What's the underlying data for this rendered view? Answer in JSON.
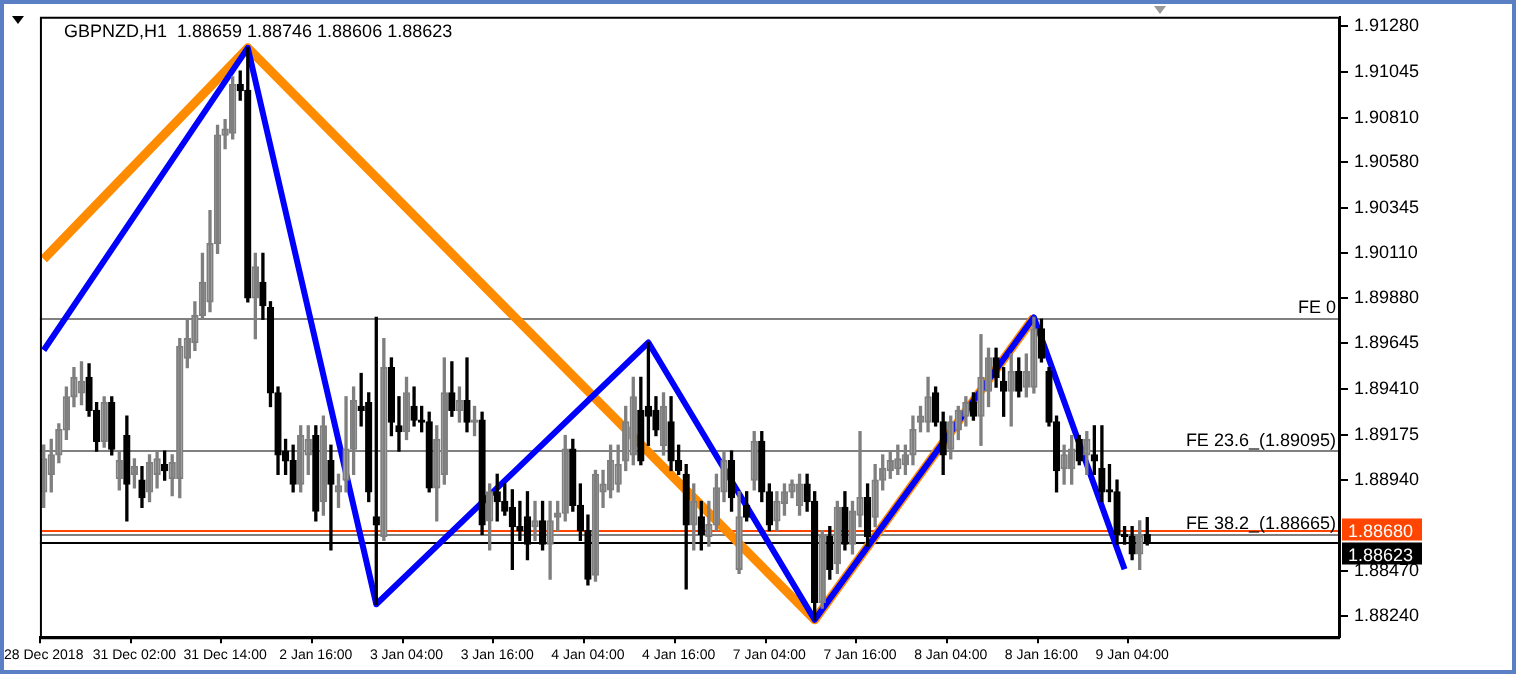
{
  "chart_data": {
    "type": "candlestick",
    "title": "GBPNZD,H1  1.88659 1.88746 1.88606 1.88623",
    "categories": [
      "28 Dec 2018",
      null,
      null,
      null,
      null,
      null,
      null,
      null,
      null,
      null,
      null,
      null,
      "31 Dec 02:00",
      null,
      null,
      null,
      null,
      null,
      null,
      null,
      null,
      null,
      null,
      null,
      "31 Dec 14:00",
      null,
      null,
      null,
      null,
      null,
      null,
      null,
      null,
      null,
      null,
      null,
      "2 Jan 16:00",
      null,
      null,
      null,
      null,
      null,
      null,
      null,
      null,
      null,
      null,
      null,
      "3 Jan 04:00",
      null,
      null,
      null,
      null,
      null,
      null,
      null,
      null,
      null,
      null,
      null,
      "3 Jan 16:00",
      null,
      null,
      null,
      null,
      null,
      null,
      null,
      null,
      null,
      null,
      null,
      "4 Jan 04:00",
      null,
      null,
      null,
      null,
      null,
      null,
      null,
      null,
      null,
      null,
      null,
      "4 Jan 16:00",
      null,
      null,
      null,
      null,
      null,
      null,
      null,
      null,
      null,
      null,
      null,
      "7 Jan 04:00",
      null,
      null,
      null,
      null,
      null,
      null,
      null,
      null,
      null,
      null,
      null,
      "7 Jan 16:00",
      null,
      null,
      null,
      null,
      null,
      null,
      null,
      null,
      null,
      null,
      null,
      "8 Jan 04:00",
      null,
      null,
      null,
      null,
      null,
      null,
      null,
      null,
      null,
      null,
      null,
      "8 Jan 16:00",
      null,
      null,
      null,
      null,
      null,
      null,
      null,
      null,
      null,
      null,
      null,
      "9 Jan 04:00",
      null,
      null,
      null,
      null,
      null,
      null,
      null,
      null,
      null,
      null,
      null,
      null,
      null,
      null,
      null,
      null,
      null,
      null,
      null,
      null,
      null,
      null,
      null,
      null,
      null,
      null,
      null
    ],
    "ohlc": [
      [
        1.8888,
        1.8912,
        1.888,
        1.8905
      ],
      [
        1.8897,
        1.8915,
        1.8888,
        1.8907
      ],
      [
        1.8907,
        1.8923,
        1.8903,
        1.892
      ],
      [
        1.892,
        1.8942,
        1.8915,
        1.8937
      ],
      [
        1.8937,
        1.8952,
        1.8932,
        1.8947
      ],
      [
        1.8939,
        1.8955,
        1.8933,
        1.8945
      ],
      [
        1.8947,
        1.8954,
        1.8927,
        1.893
      ],
      [
        1.893,
        1.8934,
        1.8909,
        1.8914
      ],
      [
        1.8914,
        1.8937,
        1.8911,
        1.8934
      ],
      [
        1.8934,
        1.8937,
        1.8907,
        1.891
      ],
      [
        1.8895,
        1.8909,
        1.8889,
        1.8904
      ],
      [
        1.8917,
        1.8927,
        1.8873,
        1.8892
      ],
      [
        1.8897,
        1.8905,
        1.889,
        1.8901
      ],
      [
        1.8894,
        1.8901,
        1.888,
        1.8885
      ],
      [
        1.8888,
        1.8907,
        1.8883,
        1.8903
      ],
      [
        1.8897,
        1.8909,
        1.889,
        1.8905
      ],
      [
        1.8902,
        1.8909,
        1.8894,
        1.8899
      ],
      [
        1.8895,
        1.8907,
        1.8886,
        1.8903
      ],
      [
        1.8895,
        1.8967,
        1.8885,
        1.8963
      ],
      [
        1.8957,
        1.8977,
        1.8952,
        1.8967
      ],
      [
        1.8965,
        1.8986,
        1.8961,
        1.8979
      ],
      [
        1.8979,
        1.9011,
        1.8977,
        1.8996
      ],
      [
        1.8986,
        1.9033,
        1.8981,
        1.9016
      ],
      [
        1.9016,
        1.9077,
        1.9011,
        1.9072
      ],
      [
        1.9072,
        1.908,
        1.9065,
        1.9075
      ],
      [
        1.9073,
        1.9102,
        1.907,
        1.9098
      ],
      [
        1.9098,
        1.9105,
        1.909,
        1.9095
      ],
      [
        1.9095,
        1.9117,
        1.8986,
        1.8988
      ],
      [
        1.8988,
        1.9011,
        1.8967,
        1.9004
      ],
      [
        1.8996,
        1.9011,
        1.8977,
        1.8984
      ],
      [
        1.8983,
        1.8986,
        1.8932,
        1.8939
      ],
      [
        1.8939,
        1.8942,
        1.8897,
        1.8907
      ],
      [
        1.8909,
        1.8915,
        1.8897,
        1.8904
      ],
      [
        1.8904,
        1.8912,
        1.8888,
        1.8892
      ],
      [
        1.8892,
        1.8922,
        1.8888,
        1.8917
      ],
      [
        1.8907,
        1.8922,
        1.8897,
        1.8915
      ],
      [
        1.8917,
        1.8922,
        1.8873,
        1.8878
      ],
      [
        1.8883,
        1.8927,
        1.8876,
        1.8922
      ],
      [
        1.8904,
        1.8912,
        1.8858,
        1.8892
      ],
      [
        1.8888,
        1.8897,
        1.888,
        1.8891
      ],
      [
        1.8894,
        1.8937,
        1.8888,
        1.891
      ],
      [
        1.891,
        1.8942,
        1.8897,
        1.8935
      ],
      [
        1.8932,
        1.8949,
        1.8922,
        1.893
      ],
      [
        1.8934,
        1.8939,
        1.8883,
        1.8888
      ],
      [
        1.8875,
        1.8978,
        1.883,
        1.8871
      ],
      [
        1.8865,
        1.8967,
        1.8863,
        1.8952
      ],
      [
        1.8952,
        1.8957,
        1.8917,
        1.8924
      ],
      [
        1.8922,
        1.8937,
        1.8909,
        1.8919
      ],
      [
        1.8919,
        1.8947,
        1.8915,
        1.8939
      ],
      [
        1.8932,
        1.8942,
        1.8922,
        1.8925
      ],
      [
        1.8925,
        1.8932,
        1.8919,
        1.8924
      ],
      [
        1.8924,
        1.8929,
        1.8888,
        1.889
      ],
      [
        1.889,
        1.8922,
        1.8873,
        1.8915
      ],
      [
        1.8897,
        1.8957,
        1.8892,
        1.8939
      ],
      [
        1.8939,
        1.8955,
        1.8927,
        1.893
      ],
      [
        1.893,
        1.8942,
        1.8924,
        1.8935
      ],
      [
        1.8935,
        1.8957,
        1.8919,
        1.8924
      ],
      [
        1.8924,
        1.8932,
        1.8917,
        1.8925
      ],
      [
        1.8925,
        1.8929,
        1.8866,
        1.8871
      ],
      [
        1.8873,
        1.8892,
        1.8858,
        1.8888
      ],
      [
        1.8888,
        1.8897,
        1.8873,
        1.8883
      ],
      [
        1.8883,
        1.8892,
        1.8876,
        1.8878
      ],
      [
        1.888,
        1.8889,
        1.8848,
        1.887
      ],
      [
        1.887,
        1.8883,
        1.8863,
        1.8868
      ],
      [
        1.8875,
        1.8888,
        1.8853,
        1.8861
      ],
      [
        1.887,
        1.8883,
        1.8863,
        1.8873
      ],
      [
        1.8873,
        1.8883,
        1.8858,
        1.8861
      ],
      [
        1.8861,
        1.8883,
        1.8843,
        1.8873
      ],
      [
        1.8875,
        1.8883,
        1.8868,
        1.8877
      ],
      [
        1.8877,
        1.8917,
        1.8873,
        1.891
      ],
      [
        1.891,
        1.8915,
        1.8878,
        1.8881
      ],
      [
        1.8881,
        1.8892,
        1.8863,
        1.8868
      ],
      [
        1.8868,
        1.8876,
        1.884,
        1.8843
      ],
      [
        1.8845,
        1.8899,
        1.8842,
        1.8897
      ],
      [
        1.8888,
        1.8899,
        1.888,
        1.8892
      ],
      [
        1.8889,
        1.8912,
        1.8885,
        1.8904
      ],
      [
        1.8892,
        1.8912,
        1.8888,
        1.8902
      ],
      [
        1.8904,
        1.8932,
        1.8899,
        1.8924
      ],
      [
        1.8907,
        1.8947,
        1.8902,
        1.8937
      ],
      [
        1.893,
        1.8947,
        1.8902,
        1.8904
      ],
      [
        1.8932,
        1.8965,
        1.8912,
        1.8927
      ],
      [
        1.893,
        1.8937,
        1.8917,
        1.892
      ],
      [
        1.8912,
        1.8939,
        1.8907,
        1.8932
      ],
      [
        1.8924,
        1.8937,
        1.8899,
        1.8904
      ],
      [
        1.8904,
        1.8912,
        1.8897,
        1.8899
      ],
      [
        1.8897,
        1.8902,
        1.8838,
        1.8871
      ],
      [
        1.8871,
        1.8892,
        1.8858,
        1.8883
      ],
      [
        1.8875,
        1.8883,
        1.8858,
        1.8866
      ],
      [
        1.8865,
        1.8883,
        1.886,
        1.8871
      ],
      [
        1.8871,
        1.8897,
        1.8868,
        1.889
      ],
      [
        1.8888,
        1.8909,
        1.8883,
        1.8904
      ],
      [
        1.8904,
        1.8909,
        1.8878,
        1.8885
      ],
      [
        1.8848,
        1.8888,
        1.8846,
        1.8875
      ],
      [
        1.8881,
        1.8888,
        1.8873,
        1.8875
      ],
      [
        1.8894,
        1.8919,
        1.8889,
        1.8914
      ],
      [
        1.8914,
        1.8919,
        1.8883,
        1.8888
      ],
      [
        1.8888,
        1.8892,
        1.8868,
        1.8871
      ],
      [
        1.8873,
        1.8888,
        1.8868,
        1.8883
      ],
      [
        1.8882,
        1.8892,
        1.8876,
        1.8888
      ],
      [
        1.8888,
        1.8894,
        1.8885,
        1.8892
      ],
      [
        1.8881,
        1.8897,
        1.8876,
        1.8892
      ],
      [
        1.8892,
        1.8897,
        1.8878,
        1.8883
      ],
      [
        1.8883,
        1.8888,
        1.8822,
        1.8831
      ],
      [
        1.8831,
        1.8868,
        1.8828,
        1.8865
      ],
      [
        1.8865,
        1.887,
        1.8843,
        1.8848
      ],
      [
        1.8851,
        1.8883,
        1.8846,
        1.888
      ],
      [
        1.888,
        1.8888,
        1.8858,
        1.8861
      ],
      [
        1.8861,
        1.8883,
        1.8856,
        1.8878
      ],
      [
        1.8876,
        1.8919,
        1.887,
        1.8885
      ],
      [
        1.8885,
        1.8892,
        1.886,
        1.8865
      ],
      [
        1.8875,
        1.8902,
        1.887,
        1.8894
      ],
      [
        1.8894,
        1.8907,
        1.8889,
        1.89
      ],
      [
        1.8899,
        1.8909,
        1.8895,
        1.8904
      ],
      [
        1.89,
        1.8912,
        1.8897,
        1.8905
      ],
      [
        1.8902,
        1.8912,
        1.8897,
        1.8907
      ],
      [
        1.8907,
        1.8927,
        1.8902,
        1.892
      ],
      [
        1.8924,
        1.8932,
        1.8919,
        1.8927
      ],
      [
        1.8924,
        1.8947,
        1.8919,
        1.8937
      ],
      [
        1.8939,
        1.8942,
        1.8922,
        1.8924
      ],
      [
        1.8924,
        1.8929,
        1.8897,
        1.8907
      ],
      [
        1.891,
        1.8927,
        1.8905,
        1.8924
      ],
      [
        1.892,
        1.8932,
        1.8915,
        1.893
      ],
      [
        1.8927,
        1.8937,
        1.8922,
        1.8934
      ],
      [
        1.8934,
        1.8939,
        1.8925,
        1.8927
      ],
      [
        1.8927,
        1.8969,
        1.8912,
        1.8947
      ],
      [
        1.894,
        1.8962,
        1.8932,
        1.8957
      ],
      [
        1.8957,
        1.8962,
        1.8942,
        1.8947
      ],
      [
        1.8945,
        1.8952,
        1.8927,
        1.894
      ],
      [
        1.894,
        1.8959,
        1.8922,
        1.895
      ],
      [
        1.895,
        1.8957,
        1.8937,
        1.894
      ],
      [
        1.8942,
        1.8959,
        1.8937,
        1.895
      ],
      [
        1.8942,
        1.8978,
        1.8939,
        1.8972
      ],
      [
        1.8972,
        1.8977,
        1.8955,
        1.8957
      ],
      [
        1.895,
        1.8952,
        1.8922,
        1.8924
      ],
      [
        1.8924,
        1.8927,
        1.8888,
        1.8899
      ],
      [
        1.89,
        1.8912,
        1.8892,
        1.8907
      ],
      [
        1.89,
        1.8917,
        1.8892,
        1.891
      ],
      [
        1.8915,
        1.8917,
        1.8902,
        1.8904
      ],
      [
        1.8907,
        1.8919,
        1.8897,
        1.8915
      ],
      [
        1.8907,
        1.8922,
        1.8897,
        1.8904
      ],
      [
        1.89,
        1.8922,
        1.8883,
        1.8888
      ],
      [
        1.8889,
        1.8902,
        1.8883,
        1.8888
      ],
      [
        1.8888,
        1.8894,
        1.8861,
        1.8866
      ],
      [
        1.8866,
        1.887,
        1.8861,
        1.8865
      ],
      [
        1.8865,
        1.887,
        1.8853,
        1.8856
      ],
      [
        1.8856,
        1.8873,
        1.8848,
        1.8865
      ],
      [
        1.88659,
        1.88746,
        1.88606,
        1.88623
      ],
      null,
      null,
      null,
      null,
      null,
      null,
      null,
      null,
      null,
      null,
      null,
      null,
      null,
      null,
      null,
      null,
      null,
      null,
      null,
      null,
      null,
      null,
      null,
      null,
      null
    ],
    "series": [
      {
        "type": "line",
        "color": "#ff8c00",
        "values": [
          1.9008,
          null,
          null,
          null,
          null,
          null,
          null,
          null,
          null,
          null,
          null,
          null,
          null,
          null,
          null,
          null,
          null,
          null,
          null,
          null,
          null,
          null,
          null,
          null,
          null,
          null,
          null,
          1.9117,
          null,
          null,
          null,
          null,
          null,
          null,
          null,
          null,
          null,
          null,
          null,
          null,
          null,
          null,
          null,
          null,
          null,
          null,
          null,
          null,
          null,
          null,
          null,
          null,
          null,
          null,
          null,
          null,
          null,
          null,
          null,
          null,
          null,
          null,
          null,
          null,
          null,
          null,
          null,
          null,
          null,
          null,
          null,
          null,
          null,
          null,
          null,
          null,
          null,
          null,
          null,
          null,
          null,
          null,
          null,
          null,
          null,
          null,
          null,
          null,
          null,
          null,
          null,
          null,
          null,
          null,
          null,
          null,
          null,
          null,
          null,
          null,
          null,
          null,
          1.8822,
          null,
          null,
          null,
          null,
          null,
          null,
          null,
          null,
          null,
          null,
          null,
          null,
          null,
          null,
          null,
          null,
          null,
          null,
          null,
          null,
          null,
          null,
          null,
          null,
          null,
          null,
          null,
          null,
          1.8978,
          null,
          null,
          null,
          null,
          null,
          null,
          null,
          null,
          null,
          null,
          null,
          null,
          null,
          null,
          null,
          null,
          null,
          null,
          null,
          null,
          null,
          null,
          null,
          null,
          null,
          null,
          null,
          null,
          null,
          null,
          null,
          null,
          null,
          null,
          null,
          null,
          null,
          null,
          null,
          null
        ]
      },
      {
        "type": "line",
        "color": "#0000ff",
        "values": [
          1.8961,
          null,
          null,
          null,
          null,
          null,
          null,
          null,
          null,
          null,
          null,
          null,
          null,
          null,
          null,
          null,
          null,
          null,
          null,
          null,
          null,
          null,
          null,
          null,
          null,
          null,
          null,
          1.9117,
          null,
          null,
          null,
          null,
          null,
          null,
          null,
          null,
          null,
          null,
          null,
          null,
          null,
          null,
          null,
          null,
          1.883,
          null,
          null,
          null,
          null,
          null,
          null,
          null,
          null,
          null,
          null,
          null,
          null,
          null,
          null,
          null,
          null,
          null,
          null,
          null,
          null,
          null,
          null,
          null,
          null,
          null,
          null,
          null,
          null,
          null,
          null,
          null,
          null,
          null,
          null,
          null,
          1.8965,
          null,
          null,
          null,
          null,
          null,
          null,
          null,
          null,
          null,
          null,
          null,
          null,
          null,
          null,
          null,
          null,
          null,
          null,
          null,
          null,
          null,
          1.8822,
          null,
          null,
          null,
          null,
          null,
          null,
          null,
          null,
          null,
          null,
          null,
          null,
          null,
          null,
          null,
          null,
          null,
          null,
          null,
          null,
          null,
          null,
          null,
          null,
          null,
          null,
          null,
          null,
          1.8978,
          null,
          null,
          null,
          null,
          null,
          null,
          null,
          null,
          null,
          null,
          null,
          1.8848,
          null,
          null,
          null,
          null,
          null,
          null,
          null,
          null,
          null,
          null,
          null,
          null,
          null,
          null,
          null,
          null,
          null,
          null,
          null,
          null,
          null,
          null,
          null,
          null,
          null,
          null,
          null,
          null
        ]
      }
    ],
    "ylim": [
      1.8813,
      1.9133
    ],
    "yticks": [
      {
        "value": 1.9128,
        "label": "1.91280"
      },
      {
        "value": 1.91045,
        "label": "1.91045"
      },
      {
        "value": 1.9081,
        "label": "1.90810"
      },
      {
        "value": 1.9058,
        "label": "1.90580"
      },
      {
        "value": 1.90345,
        "label": "1.90345"
      },
      {
        "value": 1.9011,
        "label": "1.90110"
      },
      {
        "value": 1.8988,
        "label": "1.89880"
      },
      {
        "value": 1.89645,
        "label": "1.89645"
      },
      {
        "value": 1.8941,
        "label": "1.89410"
      },
      {
        "value": 1.89175,
        "label": "1.89175"
      },
      {
        "value": 1.8894,
        "label": "1.88940"
      },
      {
        "value": 1.8847,
        "label": "1.88470"
      },
      {
        "value": 1.8824,
        "label": "1.88240"
      }
    ],
    "ref_lines": [
      {
        "axis": "y",
        "value": 1.8978,
        "label": "FE 0"
      },
      {
        "axis": "y",
        "value": 1.89095,
        "label": "FE 23.6_(1.89095)"
      },
      {
        "axis": "y",
        "value": 1.88665,
        "label": "FE 38.2_(1.88665)"
      },
      {
        "axis": "y",
        "value": 1.8868,
        "label": "1.88680",
        "color": "#ff4500"
      },
      {
        "axis": "y",
        "value": 1.88623,
        "label": "1.88623",
        "color": "#000000"
      }
    ]
  }
}
